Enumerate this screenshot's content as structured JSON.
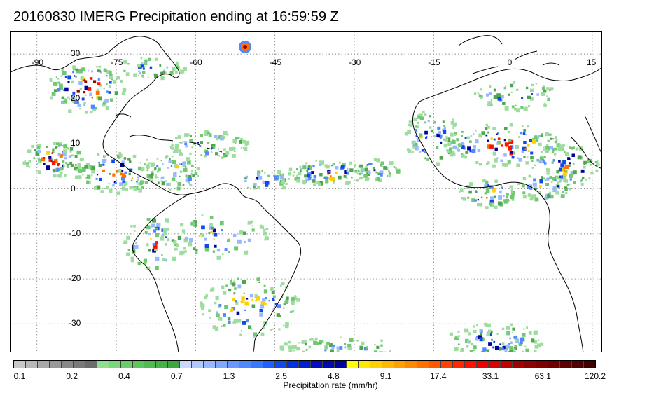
{
  "title": "20160830 IMERG Precipitation ending at 16:59:59 Z",
  "map": {
    "lon_labels": [
      "-90",
      "-75",
      "-60",
      "-45",
      "-30",
      "-15",
      "0",
      "15"
    ],
    "lat_labels": [
      "30",
      "20",
      "10",
      "0",
      "-10",
      "-20",
      "-30"
    ],
    "gridline_style": "dotted",
    "land_outline_color": "#000000"
  },
  "colorbar": {
    "title": "Precipitation rate (mm/hr)",
    "tick_labels": [
      "0.1",
      "0.2",
      "0.4",
      "0.7",
      "1.3",
      "2.5",
      "4.8",
      "9.1",
      "17.4",
      "33.1",
      "63.1",
      "120.2"
    ],
    "colors": [
      "#c8c8c8",
      "#b8b8b8",
      "#a8a8a8",
      "#989898",
      "#888888",
      "#7a7a7a",
      "#6c6c6c",
      "#8ee08e",
      "#7ad67a",
      "#6ccc6c",
      "#5ec45e",
      "#52ba52",
      "#48b048",
      "#3ea63e",
      "#c8d8ff",
      "#b0c8ff",
      "#98b8ff",
      "#80a8ff",
      "#6898ff",
      "#5088ff",
      "#3878ff",
      "#2060ff",
      "#1048f0",
      "#0030e0",
      "#0020d0",
      "#0010c0",
      "#0008b0",
      "#0000a0",
      "#ffff00",
      "#ffe800",
      "#ffd000",
      "#ffb800",
      "#ffa000",
      "#ff8800",
      "#ff7000",
      "#ff5800",
      "#ff4000",
      "#ff2800",
      "#ff1000",
      "#f00000",
      "#d80000",
      "#c00000",
      "#a00000",
      "#900000",
      "#800000",
      "#700000",
      "#600000",
      "#500000",
      "#400000"
    ]
  }
}
